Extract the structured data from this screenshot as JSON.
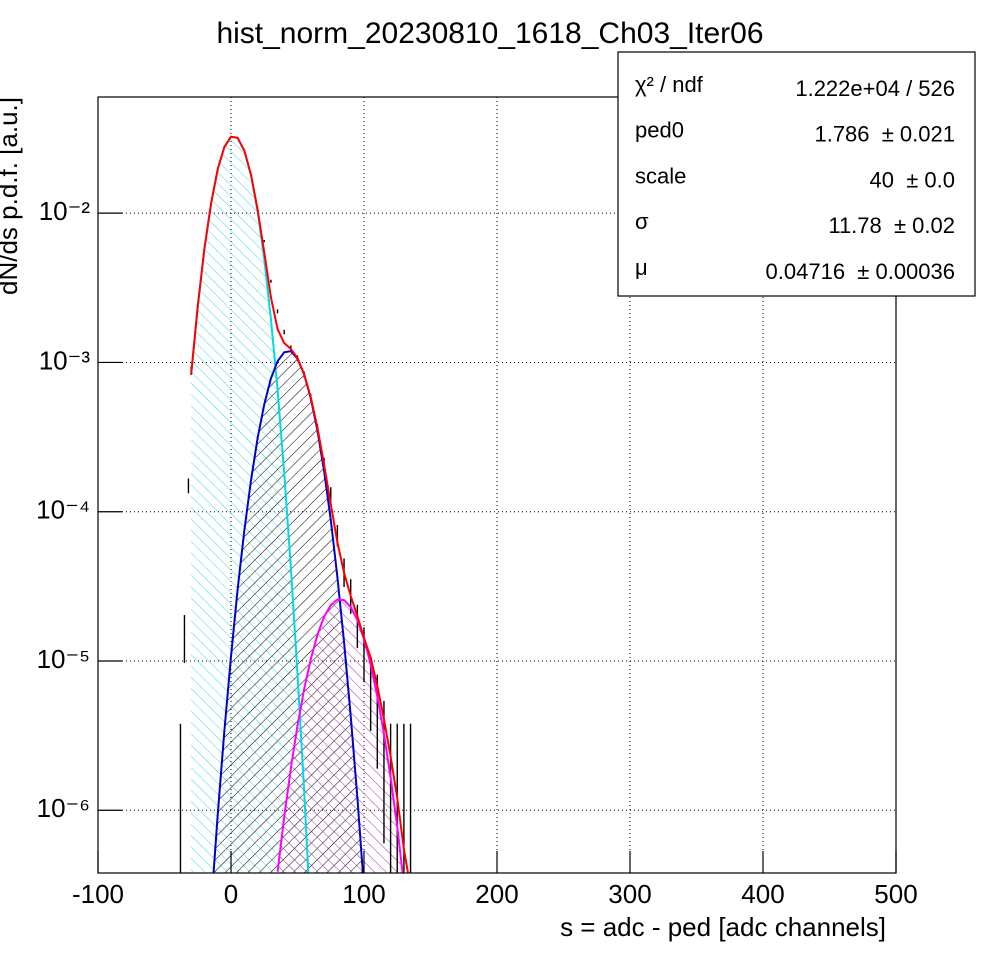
{
  "chart_data": {
    "type": "line",
    "title": "hist_norm_20230810_1618_Ch03_Iter06",
    "x_label": "s = adc - ped [adc channels]",
    "y_label": "dN/ds p.d.f. [a.u.]",
    "xlim": [
      -100,
      500
    ],
    "xticks": [
      -100,
      0,
      100,
      200,
      300,
      400,
      500
    ],
    "ylim": [
      3.8e-07,
      0.06
    ],
    "log_y": true,
    "yticks": [
      {
        "value": 1e-06,
        "label": "10⁻⁶"
      },
      {
        "value": 1e-05,
        "label": "10⁻⁵"
      },
      {
        "value": 0.0001,
        "label": "10⁻⁴"
      },
      {
        "value": 0.001,
        "label": "10⁻³"
      },
      {
        "value": 0.01,
        "label": "10⁻²"
      }
    ],
    "grid": true,
    "series": [
      {
        "kind": "points",
        "color": "#000000",
        "x": [
          -38,
          -35,
          -32,
          -30,
          -25,
          -20,
          -15,
          -10,
          -5,
          0,
          5,
          10,
          15,
          20,
          25,
          30,
          35,
          40,
          45,
          50,
          55,
          60,
          65,
          70,
          75,
          80,
          85,
          90,
          95,
          100,
          105,
          110,
          115,
          120,
          125,
          130,
          135
        ],
        "values": [
          1.9e-06,
          1.5e-05,
          0.00015,
          0.0009,
          0.0024,
          0.0058,
          0.0117,
          0.0196,
          0.0277,
          0.0325,
          0.032,
          0.0263,
          0.0182,
          0.0108,
          0.0065,
          0.0035,
          0.0022,
          0.0016,
          0.00125,
          0.00107,
          0.00083,
          0.00058,
          0.00036,
          0.00021,
          0.00013,
          7e-05,
          4e-05,
          2.8e-05,
          1.8e-05,
          1.2e-05,
          7e-06,
          5e-06,
          3e-06,
          1.9e-06,
          1.9e-06,
          1.9e-06,
          1.9e-06
        ],
        "errors": [
          1.9e-06,
          5.3e-06,
          1.7e-05,
          4.1e-05,
          6.8e-05,
          0.000105,
          0.00015,
          0.00019,
          0.00023,
          0.00025,
          0.00025,
          0.00022,
          0.00019,
          0.00014,
          0.00011,
          8.2e-05,
          6.5e-05,
          5.5e-05,
          4.9e-05,
          4.5e-05,
          4e-05,
          3.3e-05,
          2.6e-05,
          2e-05,
          1.6e-05,
          1.15e-05,
          8.7e-06,
          7.3e-06,
          5.8e-06,
          4.8e-06,
          3.6e-06,
          3.1e-06,
          2.4e-06,
          1.9e-06,
          1.9e-06,
          1.9e-06,
          1.9e-06
        ]
      },
      {
        "kind": "line",
        "color": "#00d8e8",
        "hatch_color": "#40d8e0",
        "x": [
          -30,
          -25,
          -20,
          -15,
          -10,
          -5,
          0,
          5,
          10,
          15,
          20,
          25,
          30,
          35,
          40,
          45,
          50,
          55,
          60
        ],
        "values": [
          0.000825,
          0.00239,
          0.00577,
          0.01165,
          0.01964,
          0.02766,
          0.03253,
          0.03195,
          0.0262,
          0.01795,
          0.01028,
          0.00491,
          0.00196,
          0.000653,
          0.000182,
          4.22e-05,
          8.2e-06,
          1.33e-06,
          1.8e-07
        ]
      },
      {
        "kind": "line",
        "color": "#0000cc",
        "hatch_color": "#000000",
        "x": [
          -15,
          -10,
          -5,
          0,
          5,
          10,
          15,
          20,
          25,
          30,
          35,
          40,
          45,
          50,
          55,
          60,
          65,
          70,
          75,
          80,
          85,
          90,
          95,
          100
        ],
        "values": [
          2.25e-07,
          9.3e-07,
          3.36e-06,
          1.07e-05,
          3.01e-05,
          7.46e-05,
          0.000162,
          0.000311,
          0.000525,
          0.00078,
          0.00102,
          0.00117,
          0.00119,
          0.00106,
          0.00083,
          0.000574,
          0.000349,
          0.000187,
          8.8e-05,
          3.65e-05,
          1.33e-05,
          4.28e-06,
          1.21e-06,
          3e-07
        ]
      },
      {
        "kind": "line",
        "color": "#ff00ff",
        "hatch_color": "#b030b0",
        "x": [
          35,
          40,
          45,
          50,
          55,
          60,
          65,
          70,
          75,
          80,
          85,
          90,
          95,
          100,
          105,
          110,
          115,
          120,
          125,
          130
        ],
        "values": [
          3.87e-07,
          9e-07,
          1.92e-06,
          3.7e-06,
          6.5e-06,
          1.03e-05,
          1.5e-05,
          1.98e-05,
          2.37e-05,
          2.58e-05,
          2.56e-05,
          2.3e-05,
          1.88e-05,
          1.4e-05,
          9.5e-06,
          5.8e-06,
          3.27e-06,
          1.66e-06,
          7.7e-07,
          3.2e-07
        ]
      },
      {
        "kind": "line",
        "color": "#ff0000",
        "x": [
          -30,
          -25,
          -20,
          -15,
          -10,
          -5,
          0,
          5,
          10,
          15,
          20,
          25,
          30,
          35,
          40,
          45,
          50,
          55,
          60,
          65,
          70,
          75,
          80,
          85,
          90,
          95,
          100,
          105,
          110,
          115,
          120,
          125,
          130,
          135
        ],
        "values": [
          0.000825,
          0.00239,
          0.00577,
          0.01165,
          0.01964,
          0.02766,
          0.03254,
          0.03198,
          0.02627,
          0.01811,
          0.01059,
          0.00544,
          0.00274,
          0.00167,
          0.00135,
          0.00123,
          0.00107,
          0.000831,
          0.000584,
          0.000364,
          0.000207,
          0.000112,
          6.23e-05,
          3.89e-05,
          2.73e-05,
          2e-05,
          1.43e-05,
          1.05e-05,
          6.8e-06,
          4.1e-06,
          2.3e-06,
          1.2e-06,
          5.5e-07,
          3e-07
        ]
      }
    ],
    "stats": {
      "rows": [
        {
          "label": "χ² / ndf",
          "value": "1.222e+04 / 526"
        },
        {
          "label": "ped0",
          "value": "1.786  ± 0.021"
        },
        {
          "label": "scale",
          "value": "40  ± 0.0"
        },
        {
          "label": "σ",
          "value": "11.78  ± 0.02"
        },
        {
          "label": "μ",
          "value": "0.04716  ± 0.00036"
        }
      ]
    }
  }
}
